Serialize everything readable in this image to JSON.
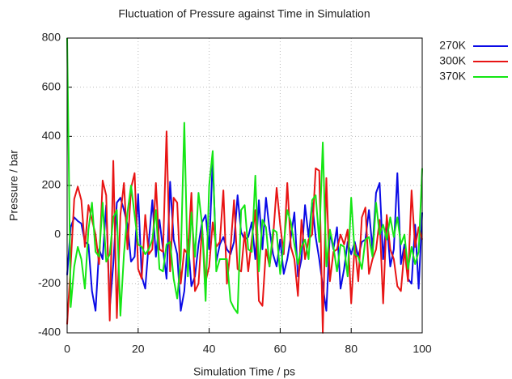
{
  "chart_data": {
    "type": "line",
    "title": "Fluctuation of Pressure against Time in Simulation",
    "x_label": "Simulation Time / ps",
    "y_label": "Pressure / bar",
    "x": [
      0,
      1,
      2,
      3,
      4,
      5,
      6,
      7,
      8,
      9,
      10,
      11,
      12,
      13,
      14,
      15,
      16,
      17,
      18,
      19,
      20,
      21,
      22,
      23,
      24,
      25,
      26,
      27,
      28,
      29,
      30,
      31,
      32,
      33,
      34,
      35,
      36,
      37,
      38,
      39,
      40,
      41,
      42,
      43,
      44,
      45,
      46,
      47,
      48,
      49,
      50,
      51,
      52,
      53,
      54,
      55,
      56,
      57,
      58,
      59,
      60,
      61,
      62,
      63,
      64,
      65,
      66,
      67,
      68,
      69,
      70,
      71,
      72,
      73,
      74,
      75,
      76,
      77,
      78,
      79,
      80,
      81,
      82,
      83,
      84,
      85,
      86,
      87,
      88,
      89,
      90,
      91,
      92,
      93,
      94,
      95,
      96,
      97,
      98,
      99,
      100
    ],
    "series": [
      {
        "name": "270K",
        "color": "#0a0ae6",
        "values": [
          -165,
          30,
          70,
          55,
          45,
          -30,
          -40,
          -230,
          -310,
          -60,
          -100,
          120,
          -300,
          -120,
          130,
          150,
          100,
          40,
          -110,
          -90,
          165,
          -170,
          -220,
          -30,
          140,
          -90,
          60,
          -60,
          -180,
          215,
          -20,
          -80,
          -310,
          -230,
          -20,
          -210,
          -170,
          -40,
          50,
          80,
          -60,
          310,
          -110,
          -40,
          -10,
          -60,
          -80,
          -30,
          160,
          10,
          -20,
          -10,
          50,
          -100,
          140,
          -60,
          150,
          20,
          -80,
          -130,
          -20,
          -160,
          -100,
          -10,
          90,
          -170,
          -100,
          120,
          -10,
          130,
          -10,
          -100,
          -210,
          -310,
          10,
          -60,
          30,
          -220,
          -140,
          -30,
          -80,
          -30,
          -90,
          -30,
          -20,
          100,
          -60,
          170,
          210,
          -100,
          60,
          -130,
          -60,
          250,
          -120,
          -40,
          -180,
          -200,
          40,
          -220,
          90
        ]
      },
      {
        "name": "300K",
        "color": "#e81414",
        "values": [
          -365,
          -125,
          145,
          195,
          140,
          -50,
          120,
          60,
          0,
          -120,
          220,
          160,
          -350,
          300,
          -340,
          80,
          210,
          -60,
          190,
          250,
          -140,
          -180,
          80,
          -80,
          -60,
          210,
          -60,
          -70,
          420,
          -150,
          150,
          130,
          -200,
          -60,
          -80,
          170,
          -230,
          -200,
          30,
          -190,
          -130,
          50,
          -50,
          -30,
          180,
          -200,
          -60,
          140,
          -140,
          -150,
          10,
          -150,
          -20,
          100,
          -270,
          -290,
          -60,
          -130,
          -10,
          190,
          40,
          -80,
          210,
          -50,
          -100,
          -250,
          60,
          -100,
          -20,
          0,
          270,
          260,
          -400,
          230,
          -190,
          -70,
          -60,
          0,
          -40,
          20,
          -280,
          -40,
          -190,
          70,
          110,
          -160,
          -100,
          -60,
          60,
          -280,
          80,
          -60,
          -100,
          -210,
          -230,
          -60,
          -190,
          180,
          -50,
          30,
          -20
        ]
      },
      {
        "name": "370K",
        "color": "#14e614",
        "values": [
          800,
          -295,
          -130,
          -50,
          -100,
          -220,
          20,
          130,
          -70,
          -90,
          130,
          -110,
          -80,
          70,
          100,
          -330,
          -80,
          90,
          200,
          80,
          -40,
          -50,
          -80,
          -60,
          -20,
          100,
          -140,
          -150,
          -40,
          -30,
          -180,
          -260,
          -100,
          455,
          -170,
          90,
          -90,
          170,
          40,
          -270,
          200,
          340,
          -150,
          -100,
          -100,
          -100,
          -270,
          -300,
          -320,
          100,
          120,
          -60,
          -70,
          240,
          -150,
          60,
          30,
          -130,
          20,
          10,
          -160,
          -40,
          100,
          50,
          -40,
          -120,
          -50,
          -20,
          -100,
          140,
          160,
          -30,
          375,
          -130,
          20,
          -50,
          -150,
          -40,
          -50,
          -170,
          150,
          -80,
          -90,
          -140,
          -20,
          -10,
          -90,
          130,
          0,
          40,
          -20,
          70,
          -10,
          70,
          -40,
          0,
          -140,
          -50,
          -120,
          -70,
          270
        ]
      }
    ],
    "xlim": [
      0,
      100
    ],
    "xticks": [
      0,
      20,
      40,
      60,
      80,
      100
    ],
    "ylim": [
      -400,
      800
    ],
    "yticks": [
      -400,
      -200,
      0,
      200,
      400,
      600,
      800
    ],
    "grid": true,
    "legend": "right"
  }
}
